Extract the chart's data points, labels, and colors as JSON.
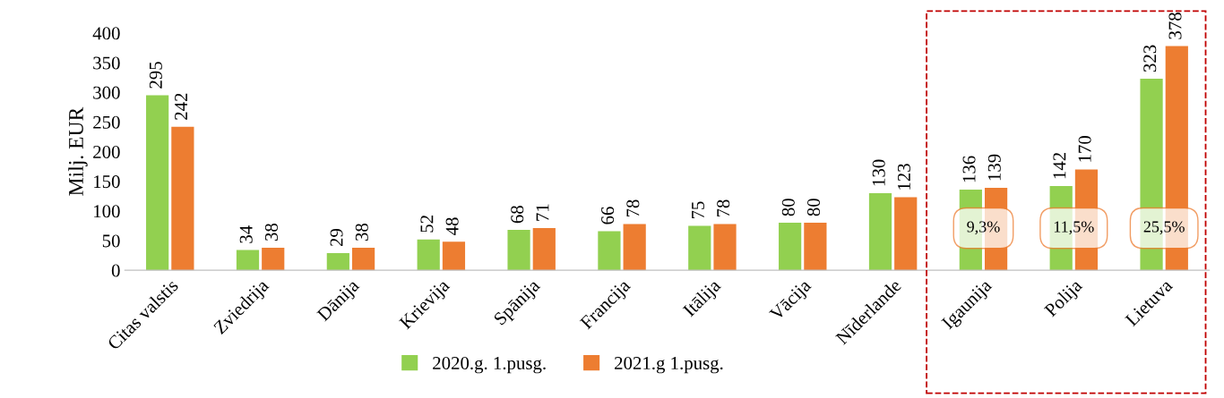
{
  "chart_data": {
    "type": "bar",
    "ylabel": "Milj. EUR",
    "categories": [
      "Citas valstis",
      "Zviedrija",
      "Dānija",
      "Krievija",
      "Spānija",
      "Francija",
      "Itālija",
      "Vācija",
      "Nīderlande",
      "Igaunija",
      "Polija",
      "Lietuva"
    ],
    "series": [
      {
        "name": "2020.g. 1.pusg.",
        "color": "#92d050",
        "values": [
          295,
          34,
          29,
          52,
          68,
          66,
          75,
          80,
          130,
          136,
          142,
          323
        ]
      },
      {
        "name": "2021.g 1.pusg.",
        "color": "#ed7d31",
        "values": [
          242,
          38,
          38,
          48,
          71,
          78,
          78,
          80,
          123,
          139,
          170,
          378
        ]
      }
    ],
    "ylim": [
      0,
      400
    ],
    "yticks": [
      0,
      50,
      100,
      150,
      200,
      250,
      300,
      350,
      400
    ],
    "data_labels": true,
    "grid": false,
    "legend": "bottom",
    "annotations": [
      {
        "text": "9,3%",
        "x": "Igaunija",
        "y": 71
      },
      {
        "text": "11,5%",
        "x": "Polija",
        "y": 71
      },
      {
        "text": "25,5%",
        "x": "Lietuva",
        "y": 71
      }
    ]
  }
}
